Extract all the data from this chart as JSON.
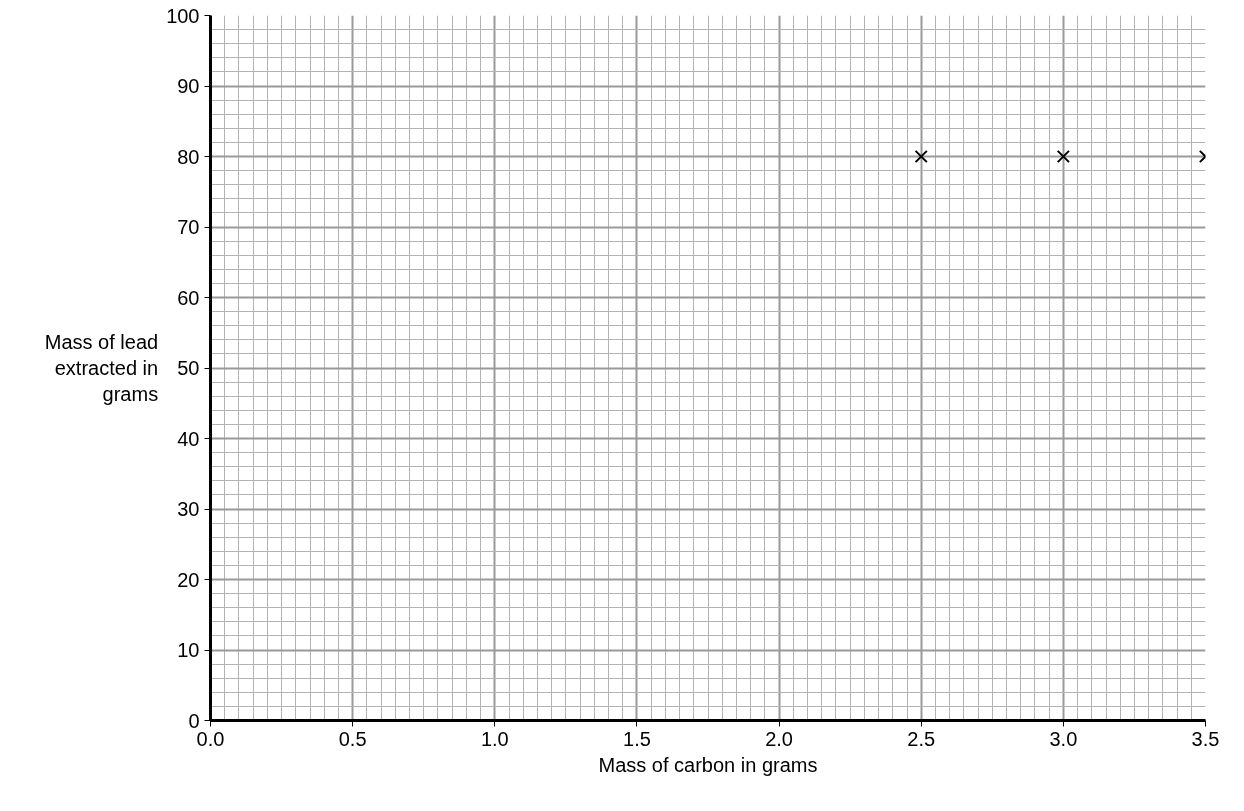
{
  "chart_data": {
    "type": "scatter",
    "xlabel": "Mass of carbon in grams",
    "ylabel": "Mass of lead extracted in grams",
    "x": [
      2.5,
      3.0,
      3.5
    ],
    "series": [
      {
        "color": "#000000",
        "values": [
          80,
          80,
          80
        ]
      }
    ],
    "xlim": [
      0,
      3.5
    ],
    "ylim": [
      0,
      100
    ],
    "xticks": [
      {
        "value": 0,
        "label": "0.0"
      },
      {
        "value": 0.5,
        "label": "0.5"
      },
      {
        "value": 1,
        "label": "1.0"
      },
      {
        "value": 1.5,
        "label": "1.5"
      },
      {
        "value": 2,
        "label": "2.0"
      },
      {
        "value": 2.5,
        "label": "2.5"
      },
      {
        "value": 3,
        "label": "3.0"
      },
      {
        "value": 3.5,
        "label": "3.5"
      }
    ],
    "yticks": [
      0,
      10,
      20,
      30,
      40,
      50,
      60,
      70,
      80,
      90,
      100
    ],
    "grid": true,
    "marker": "cross"
  }
}
